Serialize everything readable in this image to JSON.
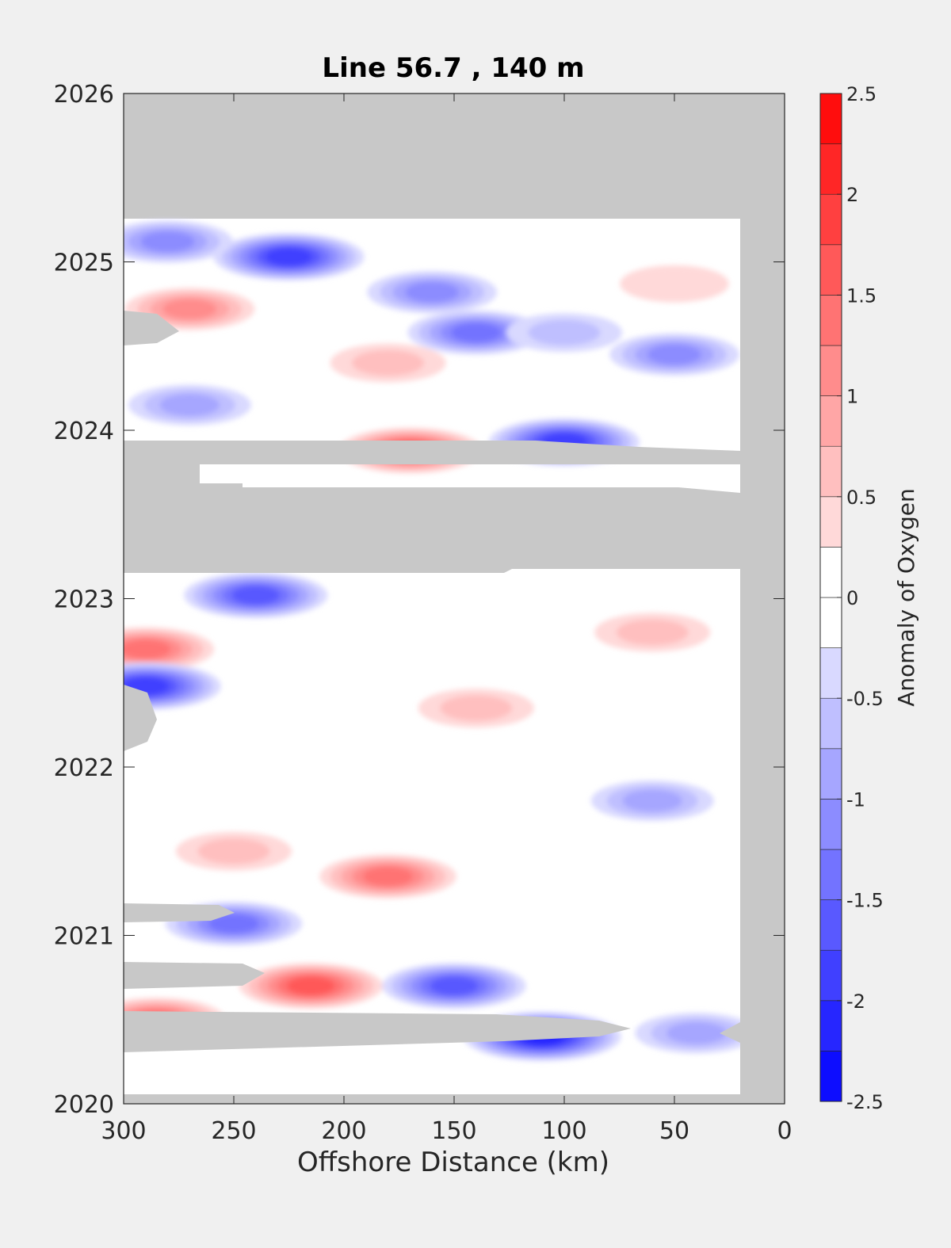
{
  "chart_data": {
    "type": "heatmap",
    "title": "Line 56.7 , 140 m",
    "xlabel": "Offshore Distance (km)",
    "ylabel": "",
    "xlim": [
      300,
      0
    ],
    "ylim": [
      2020,
      2026
    ],
    "x_ticks": [
      "300",
      "250",
      "200",
      "150",
      "100",
      "50",
      "0"
    ],
    "y_ticks": [
      "2020",
      "2021",
      "2022",
      "2023",
      "2024",
      "2025",
      "2026"
    ],
    "colorbar": {
      "label": "Anomaly of Oxygen",
      "range": [
        -2.5,
        2.5
      ],
      "step": 0.25,
      "ticks": [
        "2.5",
        "2",
        "1.5",
        "1",
        "0.5",
        "0",
        "-0.5",
        "-1",
        "-1.5",
        "-2",
        "-2.5"
      ]
    },
    "no_data_color": "#c8c8c8",
    "data_extent": {
      "x_range_km": [
        20,
        300
      ],
      "time_range": [
        2019.96,
        2025.25
      ],
      "no_data_time_bands": [
        [
          2023.11,
          2023.61
        ],
        [
          2023.79,
          2023.89
        ]
      ]
    },
    "anomaly_features": [
      {
        "x": 225,
        "y": 2025.03,
        "value": -2.0
      },
      {
        "x": 280,
        "y": 2025.12,
        "value": -1.25
      },
      {
        "x": 160,
        "y": 2024.82,
        "value": -1.25
      },
      {
        "x": 50,
        "y": 2024.87,
        "value": 0.5
      },
      {
        "x": 270,
        "y": 2024.72,
        "value": 1.25
      },
      {
        "x": 140,
        "y": 2024.58,
        "value": -1.5
      },
      {
        "x": 100,
        "y": 2024.58,
        "value": -0.75
      },
      {
        "x": 50,
        "y": 2024.45,
        "value": -1.25
      },
      {
        "x": 180,
        "y": 2024.4,
        "value": 0.75
      },
      {
        "x": 270,
        "y": 2024.15,
        "value": -1.0
      },
      {
        "x": 100,
        "y": 2023.93,
        "value": -2.0
      },
      {
        "x": 170,
        "y": 2023.88,
        "value": 1.75
      },
      {
        "x": 240,
        "y": 2023.02,
        "value": -1.75
      },
      {
        "x": 290,
        "y": 2022.7,
        "value": 1.5
      },
      {
        "x": 60,
        "y": 2022.8,
        "value": 0.75
      },
      {
        "x": 290,
        "y": 2022.48,
        "value": -2.0
      },
      {
        "x": 140,
        "y": 2022.35,
        "value": 0.75
      },
      {
        "x": 60,
        "y": 2021.8,
        "value": -1.0
      },
      {
        "x": 250,
        "y": 2021.5,
        "value": 0.75
      },
      {
        "x": 180,
        "y": 2021.35,
        "value": 1.5
      },
      {
        "x": 250,
        "y": 2021.07,
        "value": -1.5
      },
      {
        "x": 215,
        "y": 2020.7,
        "value": 1.75
      },
      {
        "x": 150,
        "y": 2020.7,
        "value": -1.75
      },
      {
        "x": 110,
        "y": 2020.4,
        "value": -2.25
      },
      {
        "x": 285,
        "y": 2020.5,
        "value": 1.5
      },
      {
        "x": 40,
        "y": 2020.42,
        "value": -1.0
      }
    ]
  }
}
